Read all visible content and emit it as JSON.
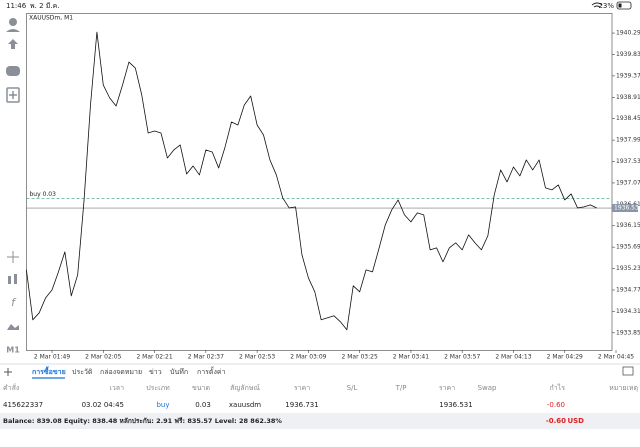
{
  "status_bar": {
    "time": "11:46",
    "date": "พ. 2 มี.ค.",
    "battery": "23%"
  },
  "chart_data": {
    "type": "line",
    "title": "XAUUSDm, M1",
    "color": "#111111",
    "categories": [
      null,
      null,
      null,
      null,
      "2 Mar 01:49",
      null,
      null,
      null,
      null,
      null,
      null,
      null,
      "2 Mar 02:05",
      null,
      null,
      null,
      null,
      null,
      null,
      null,
      "2 Mar 02:21",
      null,
      null,
      null,
      null,
      null,
      null,
      null,
      "2 Mar 02:37",
      null,
      null,
      null,
      null,
      null,
      null,
      null,
      "2 Mar 02:53",
      null,
      null,
      null,
      null,
      null,
      null,
      null,
      "2 Mar 03:09",
      null,
      null,
      null,
      null,
      null,
      null,
      null,
      "2 Mar 03:25",
      null,
      null,
      null,
      null,
      null,
      null,
      null,
      "2 Mar 03:41",
      null,
      null,
      null,
      null,
      null,
      null,
      null,
      "2 Mar 03:57",
      null,
      null,
      null,
      null,
      null,
      null,
      null,
      "2 Mar 04:13",
      null,
      null,
      null,
      null,
      null,
      null,
      null,
      "2 Mar 04:29",
      null,
      null,
      null,
      null,
      null,
      null,
      null,
      "2 Mar 04:45"
    ],
    "values": [
      1935.202,
      1934.129,
      1934.279,
      1934.601,
      1934.773,
      1935.159,
      1935.589,
      1934.644,
      1935.095,
      1936.705,
      1938.744,
      1940.311,
      1939.174,
      1938.895,
      1938.723,
      1939.174,
      1939.667,
      1939.539,
      1938.959,
      1938.143,
      1938.186,
      1938.143,
      1937.607,
      1937.778,
      1937.886,
      1937.263,
      1937.435,
      1937.242,
      1937.778,
      1937.735,
      1937.392,
      1937.843,
      1938.379,
      1938.315,
      1938.744,
      1938.938,
      1938.315,
      1938.1,
      1937.564,
      1937.242,
      1936.748,
      1936.533,
      1936.555,
      1935.524,
      1935.031,
      1934.73,
      1934.129,
      1934.172,
      1934.215,
      1934.086,
      1933.914,
      1934.859,
      1934.73,
      1935.202,
      1935.159,
      1935.653,
      1936.168,
      1936.49,
      1936.705,
      1936.383,
      1936.233,
      1936.426,
      1936.383,
      1935.632,
      1935.675,
      1935.374,
      1935.675,
      1935.782,
      1935.632,
      1935.954,
      1935.782,
      1935.632,
      1935.932,
      1936.812,
      1937.349,
      1937.091,
      1937.413,
      1937.22,
      1937.564,
      1937.349,
      1937.564,
      1936.963,
      1936.92,
      1937.027,
      1936.705,
      1936.834,
      1936.533,
      1936.555,
      1936.598,
      1936.531,
      null,
      null,
      null
    ],
    "ylim": [
      1933.48,
      1940.7
    ],
    "yticks": [
      {
        "value": 1940.29,
        "label": "1940.290"
      },
      {
        "value": 1939.83,
        "label": "1939.830"
      },
      {
        "value": 1939.37,
        "label": "1939.370"
      },
      {
        "value": 1938.91,
        "label": "1938.910"
      },
      {
        "value": 1938.45,
        "label": "1938.450"
      },
      {
        "value": 1937.99,
        "label": "1937.990"
      },
      {
        "value": 1937.53,
        "label": "1937.530"
      },
      {
        "value": 1937.07,
        "label": "1937.070"
      },
      {
        "value": 1936.61,
        "label": "1936.610"
      },
      {
        "value": 1936.15,
        "label": "1936.150"
      },
      {
        "value": 1935.69,
        "label": "1935.690"
      },
      {
        "value": 1935.23,
        "label": "1935.230"
      },
      {
        "value": 1934.77,
        "label": "1934.770"
      },
      {
        "value": 1934.31,
        "label": "1934.310"
      },
      {
        "value": 1933.85,
        "label": "1933.850"
      }
    ],
    "position_line": {
      "label": "buy 0.03",
      "value": 1936.731
    },
    "bid": 1936.531,
    "grid": false
  },
  "sidebar": {
    "timeframe": "M1"
  },
  "tabs": [
    "การซื้อขาย",
    "ประวัติ",
    "กล่องจดหมาย",
    "ข่าว",
    "บันทึก",
    "การตั้งค่า"
  ],
  "table": {
    "columns": [
      "คำสั่ง",
      "เวลา",
      "ประเภท",
      "ขนาด",
      "สัญลักษณ์",
      "ราคา",
      "S/L",
      "T/P",
      "ราคา",
      "Swap",
      "กำไร",
      "หมายเหตุ"
    ],
    "rows": [
      {
        "order": "415622337",
        "time": "03.02 04:45",
        "type": "buy",
        "size": "0.03",
        "symbol": "xauusdm",
        "open_price": "1936.731",
        "price": "1936.531",
        "profit": "-0.60"
      }
    ]
  },
  "footer": {
    "summary": "Balance: 839.08 Equity: 838.48 หลักประกัน: 2.91 ฟรี: 835.57 Level: 28 862.38%",
    "profit": "-0.60",
    "currency": "USD"
  }
}
